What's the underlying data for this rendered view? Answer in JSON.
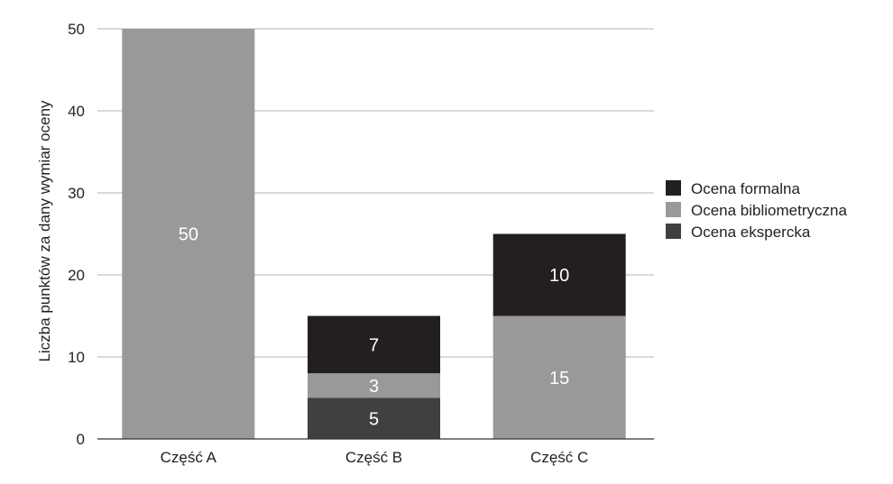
{
  "chart_data": {
    "type": "bar",
    "stacked": true,
    "title": "",
    "xlabel": "",
    "ylabel": "Liczba punktów za dany wymiar oceny",
    "ylim": [
      0,
      50
    ],
    "yticks": [
      0,
      10,
      20,
      30,
      40,
      50
    ],
    "grid": true,
    "legend_position": "right",
    "categories": [
      "Część A",
      "Część B",
      "Część C"
    ],
    "series": [
      {
        "name": "Ocena ekspercka",
        "color": "#404040",
        "values": [
          0,
          5,
          0
        ]
      },
      {
        "name": "Ocena bibliometryczna",
        "color": "#999999",
        "values": [
          50,
          3,
          15
        ]
      },
      {
        "name": "Ocena formalna",
        "color": "#231f20",
        "values": [
          0,
          7,
          10
        ]
      }
    ],
    "legend_order": [
      "Ocena formalna",
      "Ocena bibliometryczna",
      "Ocena ekspercka"
    ]
  }
}
